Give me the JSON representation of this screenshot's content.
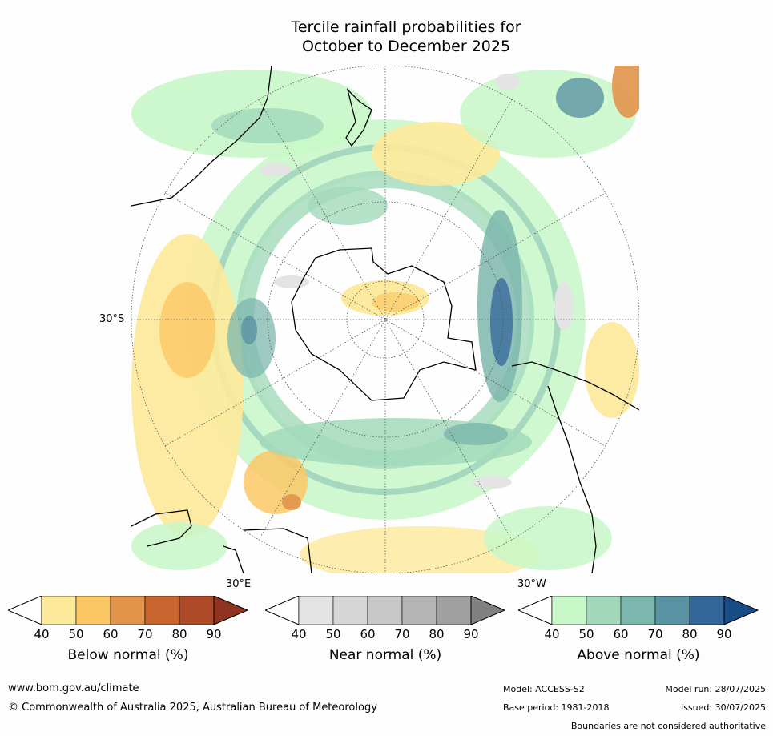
{
  "title": {
    "line1": "Tercile rainfall probabilities for",
    "line2": "October to December 2025"
  },
  "map_labels": {
    "lat_30s": "30°S",
    "lon_30e": "30°E",
    "lon_30w": "30°W"
  },
  "colorbars": [
    {
      "label": "Below normal (%)",
      "ticks": [
        "40",
        "50",
        "60",
        "70",
        "80",
        "90"
      ],
      "colors": [
        "#ffffff",
        "#fde99a",
        "#fbc865",
        "#e1944a",
        "#c8652f",
        "#ae4a28",
        "#8f3421"
      ]
    },
    {
      "label": "Near normal (%)",
      "ticks": [
        "40",
        "50",
        "60",
        "70",
        "80",
        "90"
      ],
      "colors": [
        "#ffffff",
        "#e4e4e4",
        "#d6d6d6",
        "#c8c8c8",
        "#b4b4b4",
        "#a0a0a0",
        "#808080"
      ]
    },
    {
      "label": "Above normal (%)",
      "ticks": [
        "40",
        "50",
        "60",
        "70",
        "80",
        "90"
      ],
      "colors": [
        "#ffffff",
        "#c8f7c8",
        "#a2d9bb",
        "#7cb7ad",
        "#5a93a3",
        "#336699",
        "#174c87"
      ]
    }
  ],
  "footer": {
    "website": "www.bom.gov.au/climate",
    "copyright": "© Commonwealth of Australia 2025, Australian Bureau of Meteorology",
    "model": "Model: ACCESS-S2",
    "model_run": "Model run: 28/07/2025",
    "base_period": "Base period: 1981-2018",
    "issued": "Issued: 30/07/2025",
    "disclaimer": "Boundaries are not considered authoritative"
  }
}
